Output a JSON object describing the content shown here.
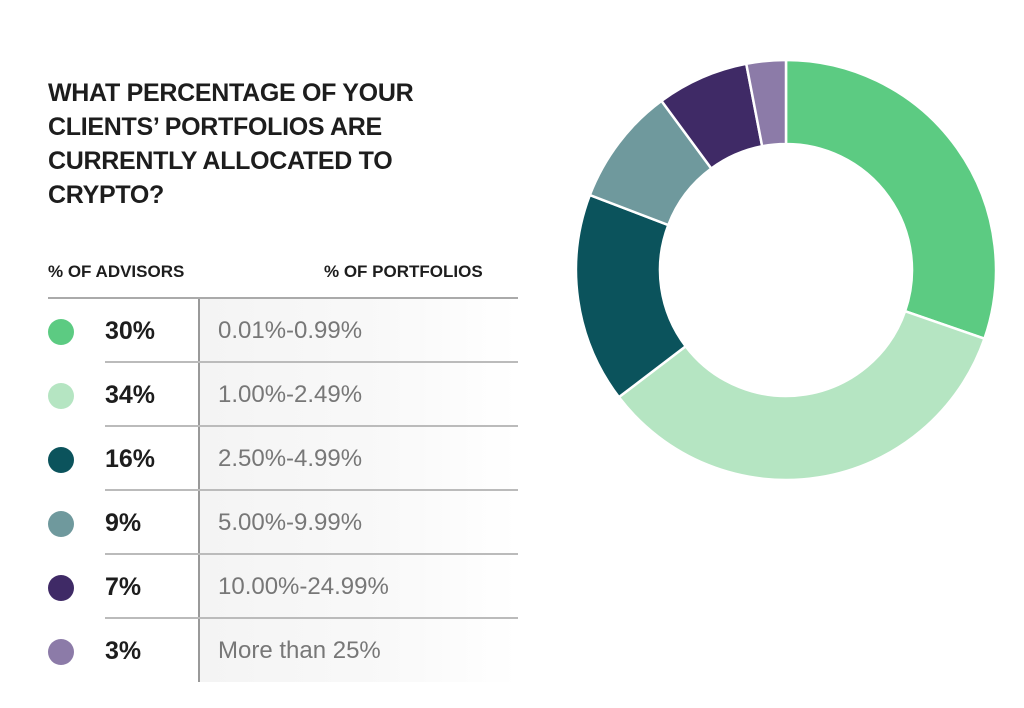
{
  "chart_data": {
    "type": "pie",
    "variant": "donut",
    "title": "WHAT PERCENTAGE OF YOUR CLIENTS’ PORTFOLIOS ARE CURRENTLY ALLOCATED TO CRYPTO?",
    "column_headers": {
      "advisors": "% OF ADVISORS",
      "portfolios": "% OF PORTFOLIOS"
    },
    "slices": [
      {
        "label": "0.01%-0.99%",
        "value": 30,
        "value_label": "30%",
        "color": "#5ccb82"
      },
      {
        "label": "1.00%-2.49%",
        "value": 34,
        "value_label": "34%",
        "color": "#b5e5c2"
      },
      {
        "label": "2.50%-4.99%",
        "value": 16,
        "value_label": "16%",
        "color": "#0b535c"
      },
      {
        "label": "5.00%-9.99%",
        "value": 9,
        "value_label": "9%",
        "color": "#6f999d"
      },
      {
        "label": "10.00%-24.99%",
        "value": 7,
        "value_label": "7%",
        "color": "#3f2a66"
      },
      {
        "label": "More than 25%",
        "value": 3,
        "value_label": "3%",
        "color": "#8c7ba8"
      }
    ]
  }
}
